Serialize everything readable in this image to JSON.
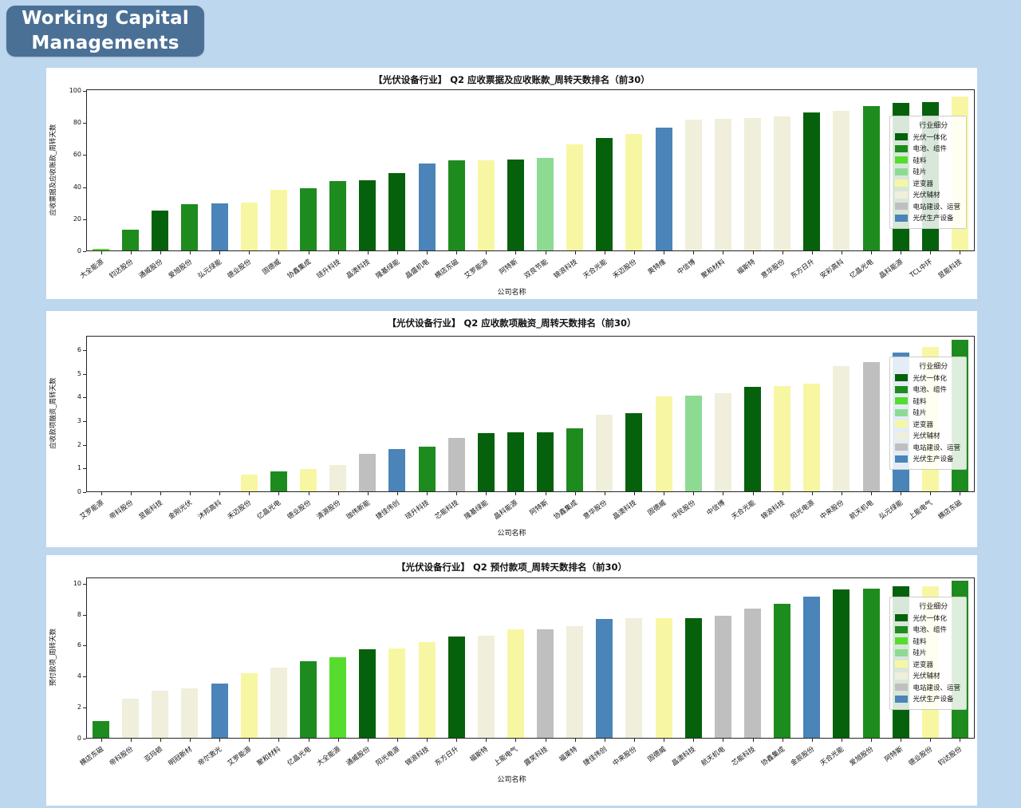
{
  "header": {
    "title_line1": "Working Capital",
    "title_line2": "Managements"
  },
  "colors": {
    "page_bg": "#BDD7EE",
    "badge_bg": "#4A7096",
    "badge_text": "#FFFFFF",
    "panel_bg": "#FFFFFF",
    "axis": "#262626",
    "categories": {
      "光伏一体化": "#06610C",
      "电池、组件": "#1E8B1E",
      "硅料": "#55DC2E",
      "硅片": "#8DDB92",
      "逆变器": "#F7F7A3",
      "光伏辅材": "#EFEFDB",
      "电站建设、运营": "#BFBFBF",
      "光伏生产设备": "#4A84B8"
    }
  },
  "legend": {
    "title": "行业细分",
    "entries": [
      "光伏一体化",
      "电池、组件",
      "硅料",
      "硅片",
      "逆变器",
      "光伏辅材",
      "电站建设、运营",
      "光伏生产设备"
    ]
  },
  "chart_data": [
    {
      "type": "bar",
      "title": "【光伏设备行业】 Q2 应收票据及应收账款_周转天数排名（前30）",
      "xlabel": "公司名称",
      "ylabel": "应收票据及应收账款_周转天数",
      "ylim": [
        0,
        101
      ],
      "yticks": [
        0,
        20,
        40,
        60,
        80,
        100
      ],
      "legend_position": "upper-right",
      "categories": [
        "大全能源",
        "钧达股份",
        "通威股份",
        "爱旭股份",
        "弘元绿能",
        "德业股份",
        "固德威",
        "协鑫集成",
        "琏升科技",
        "晶澳科技",
        "隆基绿能",
        "晶盛机电",
        "横店东磁",
        "艾罗能源",
        "阿特斯",
        "双良节能",
        "锦浪科技",
        "天合光能",
        "禾迈股份",
        "奥特维",
        "中信博",
        "聚和材料",
        "福斯特",
        "意华股份",
        "东方日升",
        "安彩高科",
        "亿晶光电",
        "晶科能源",
        "TCL中环",
        "昱能科技"
      ],
      "values": [
        1,
        13,
        25,
        29,
        29.5,
        30,
        38,
        39,
        43.5,
        44,
        48.5,
        54,
        56,
        56,
        56.5,
        57.5,
        66,
        70,
        72.5,
        76.5,
        81.5,
        82,
        82.5,
        83.5,
        86,
        87,
        90,
        92,
        92.5,
        96
      ],
      "industries": [
        "硅料",
        "电池、组件",
        "光伏一体化",
        "电池、组件",
        "光伏生产设备",
        "逆变器",
        "逆变器",
        "电池、组件",
        "电池、组件",
        "光伏一体化",
        "光伏一体化",
        "光伏生产设备",
        "电池、组件",
        "逆变器",
        "光伏一体化",
        "硅片",
        "逆变器",
        "光伏一体化",
        "逆变器",
        "光伏生产设备",
        "光伏辅材",
        "光伏辅材",
        "光伏辅材",
        "光伏辅材",
        "光伏一体化",
        "光伏辅材",
        "电池、组件",
        "光伏一体化",
        "光伏一体化",
        "逆变器"
      ]
    },
    {
      "type": "bar",
      "title": "【光伏设备行业】 Q2 应收款项融资_周转天数排名（前30）",
      "xlabel": "公司名称",
      "ylabel": "应收款项融资_周转天数",
      "ylim": [
        0,
        6.6
      ],
      "yticks": [
        0,
        1,
        2,
        3,
        4,
        5,
        6
      ],
      "legend_position": "upper-right",
      "categories": [
        "艾罗能源",
        "帝科股份",
        "昱能科技",
        "金刚光伏",
        "沐邦高科",
        "禾迈股份",
        "亿晶光电",
        "德业股份",
        "清源股份",
        "珈伟新能",
        "捷佳伟创",
        "琏升科技",
        "芯能科技",
        "隆基绿能",
        "晶科能源",
        "阿特斯",
        "协鑫集成",
        "意华股份",
        "晶澳科技",
        "固德威",
        "华民股份",
        "中信博",
        "天合光能",
        "锦浪科技",
        "阳光电源",
        "中来股份",
        "航天机电",
        "弘元绿能",
        "上能电气",
        "横店东磁"
      ],
      "values": [
        0,
        0,
        0,
        0,
        0,
        0.7,
        0.85,
        0.95,
        1.1,
        1.6,
        1.8,
        1.9,
        2.25,
        2.45,
        2.5,
        2.5,
        2.65,
        3.25,
        3.3,
        4.0,
        4.05,
        4.15,
        4.4,
        4.45,
        4.55,
        5.3,
        5.45,
        5.85,
        6.1,
        6.4
      ],
      "industries": [
        "逆变器",
        "光伏辅材",
        "逆变器",
        "电池、组件",
        "硅料",
        "逆变器",
        "电池、组件",
        "逆变器",
        "光伏辅材",
        "电站建设、运营",
        "光伏生产设备",
        "电池、组件",
        "电站建设、运营",
        "光伏一体化",
        "光伏一体化",
        "光伏一体化",
        "电池、组件",
        "光伏辅材",
        "光伏一体化",
        "逆变器",
        "硅片",
        "光伏辅材",
        "光伏一体化",
        "逆变器",
        "逆变器",
        "光伏辅材",
        "电站建设、运营",
        "光伏生产设备",
        "逆变器",
        "电池、组件"
      ]
    },
    {
      "type": "bar",
      "title": "【光伏设备行业】 Q2 预付款项_周转天数排名（前30）",
      "xlabel": "公司名称",
      "ylabel": "预付款项_周转天数",
      "ylim": [
        0,
        10.4
      ],
      "yticks": [
        0,
        2,
        4,
        6,
        8,
        10
      ],
      "legend_position": "upper-right",
      "categories": [
        "横店东磁",
        "帝科股份",
        "亚玛顿",
        "明冠新材",
        "帝尔激光",
        "艾罗能源",
        "聚和材料",
        "亿晶光电",
        "大全能源",
        "通威股份",
        "阳光电源",
        "锦浪科技",
        "东方日升",
        "福斯特",
        "上能电气",
        "露笑科技",
        "福莱特",
        "捷佳伟创",
        "中来股份",
        "固德威",
        "晶澳科技",
        "航天机电",
        "芯能科技",
        "协鑫集成",
        "金辰股份",
        "天合光能",
        "爱旭股份",
        "阿特斯",
        "德业股份",
        "钧达股份"
      ],
      "values": [
        1.1,
        2.5,
        3.05,
        3.2,
        3.5,
        4.15,
        4.55,
        4.95,
        5.2,
        5.7,
        5.75,
        6.2,
        6.55,
        6.6,
        7.0,
        7.0,
        7.2,
        7.65,
        7.7,
        7.7,
        7.7,
        7.9,
        8.35,
        8.65,
        9.1,
        9.6,
        9.65,
        9.8,
        9.8,
        10.15
      ],
      "industries": [
        "电池、组件",
        "光伏辅材",
        "光伏辅材",
        "光伏辅材",
        "光伏生产设备",
        "逆变器",
        "光伏辅材",
        "电池、组件",
        "硅料",
        "光伏一体化",
        "逆变器",
        "逆变器",
        "光伏一体化",
        "光伏辅材",
        "逆变器",
        "电站建设、运营",
        "光伏辅材",
        "光伏生产设备",
        "光伏辅材",
        "逆变器",
        "光伏一体化",
        "电站建设、运营",
        "电站建设、运营",
        "电池、组件",
        "光伏生产设备",
        "光伏一体化",
        "电池、组件",
        "光伏一体化",
        "逆变器",
        "电池、组件"
      ]
    }
  ]
}
